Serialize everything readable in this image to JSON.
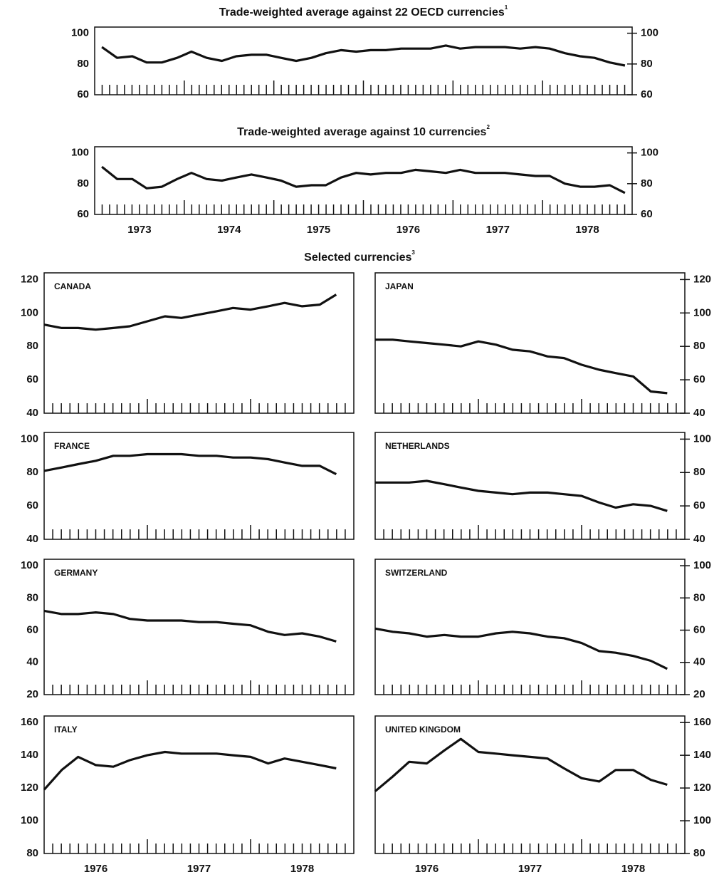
{
  "heading": "Selected currencies",
  "heading_footnote": "3",
  "chart_data": [
    {
      "type": "line",
      "title": "Trade-weighted average against 22 OECD currencies",
      "title_footnote": "1",
      "color": "#111111",
      "x": [
        1973.08,
        1973.25,
        1973.42,
        1973.58,
        1973.75,
        1973.92,
        1974.08,
        1974.25,
        1974.42,
        1974.58,
        1974.75,
        1974.92,
        1975.08,
        1975.25,
        1975.42,
        1975.58,
        1975.75,
        1975.92,
        1976.08,
        1976.25,
        1976.42,
        1976.58,
        1976.75,
        1976.92,
        1977.08,
        1977.25,
        1977.42,
        1977.58,
        1977.75,
        1977.92,
        1978.08,
        1978.25,
        1978.42,
        1978.58,
        1978.75,
        1978.92
      ],
      "values": [
        91,
        84,
        85,
        81,
        81,
        84,
        88,
        84,
        82,
        85,
        86,
        86,
        84,
        82,
        84,
        87,
        89,
        88,
        89,
        89,
        90,
        90,
        90,
        92,
        90,
        91,
        91,
        91,
        90,
        91,
        90,
        87,
        85,
        84,
        81,
        79
      ],
      "xlim": [
        1973,
        1979
      ],
      "ylim": [
        60,
        104
      ],
      "yticks": [
        60,
        80,
        100
      ],
      "minor_ticks_per_year": 12
    },
    {
      "type": "line",
      "title": "Trade-weighted average against 10 currencies",
      "title_footnote": "2",
      "color": "#111111",
      "x": [
        1973.08,
        1973.25,
        1973.42,
        1973.58,
        1973.75,
        1973.92,
        1974.08,
        1974.25,
        1974.42,
        1974.58,
        1974.75,
        1974.92,
        1975.08,
        1975.25,
        1975.42,
        1975.58,
        1975.75,
        1975.92,
        1976.08,
        1976.25,
        1976.42,
        1976.58,
        1976.75,
        1976.92,
        1977.08,
        1977.25,
        1977.42,
        1977.58,
        1977.75,
        1977.92,
        1978.08,
        1978.25,
        1978.42,
        1978.58,
        1978.75,
        1978.92
      ],
      "values": [
        91,
        83,
        83,
        77,
        78,
        83,
        87,
        83,
        82,
        84,
        86,
        84,
        82,
        78,
        79,
        79,
        84,
        87,
        86,
        87,
        87,
        89,
        88,
        87,
        89,
        87,
        87,
        87,
        86,
        85,
        85,
        80,
        78,
        78,
        79,
        74
      ],
      "xlim": [
        1973,
        1979
      ],
      "ylim": [
        60,
        104
      ],
      "yticks": [
        60,
        80,
        100
      ],
      "minor_ticks_per_year": 12,
      "xticks": [
        {
          "value": 1973.5,
          "label": "1973"
        },
        {
          "value": 1974.5,
          "label": "1974"
        },
        {
          "value": 1975.5,
          "label": "1975"
        },
        {
          "value": 1976.5,
          "label": "1976"
        },
        {
          "value": 1977.5,
          "label": "1977"
        },
        {
          "value": 1978.5,
          "label": "1978"
        }
      ]
    },
    {
      "type": "line",
      "title": "CANADA",
      "color": "#111111",
      "x": [
        1976,
        1976.17,
        1976.33,
        1976.5,
        1976.67,
        1976.83,
        1977,
        1977.17,
        1977.33,
        1977.5,
        1977.67,
        1977.83,
        1978,
        1978.17,
        1978.33,
        1978.5,
        1978.67,
        1978.83
      ],
      "values": [
        93,
        91,
        91,
        90,
        91,
        92,
        95,
        98,
        97,
        99,
        101,
        103,
        102,
        104,
        106,
        104,
        105,
        111
      ],
      "xlim": [
        1976,
        1979
      ],
      "ylim": [
        40,
        124
      ],
      "yticks": [
        40,
        60,
        80,
        100,
        120
      ],
      "minor_ticks_per_year": 12
    },
    {
      "type": "line",
      "title": "JAPAN",
      "color": "#111111",
      "x": [
        1976,
        1976.17,
        1976.33,
        1976.5,
        1976.67,
        1976.83,
        1977,
        1977.17,
        1977.33,
        1977.5,
        1977.67,
        1977.83,
        1978,
        1978.17,
        1978.33,
        1978.5,
        1978.67,
        1978.83
      ],
      "values": [
        84,
        84,
        83,
        82,
        81,
        80,
        83,
        81,
        78,
        77,
        74,
        73,
        69,
        66,
        64,
        62,
        53,
        52
      ],
      "xlim": [
        1976,
        1979
      ],
      "ylim": [
        40,
        124
      ],
      "yticks": [
        40,
        60,
        80,
        100,
        120
      ],
      "minor_ticks_per_year": 12
    },
    {
      "type": "line",
      "title": "FRANCE",
      "color": "#111111",
      "x": [
        1976,
        1976.17,
        1976.33,
        1976.5,
        1976.67,
        1976.83,
        1977,
        1977.17,
        1977.33,
        1977.5,
        1977.67,
        1977.83,
        1978,
        1978.17,
        1978.33,
        1978.5,
        1978.67,
        1978.83
      ],
      "values": [
        81,
        83,
        85,
        87,
        90,
        90,
        91,
        91,
        91,
        90,
        90,
        89,
        89,
        88,
        86,
        84,
        84,
        79
      ],
      "xlim": [
        1976,
        1979
      ],
      "ylim": [
        40,
        104
      ],
      "yticks": [
        40,
        60,
        80,
        100
      ],
      "minor_ticks_per_year": 12
    },
    {
      "type": "line",
      "title": "NETHERLANDS",
      "color": "#111111",
      "x": [
        1976,
        1976.17,
        1976.33,
        1976.5,
        1976.67,
        1976.83,
        1977,
        1977.17,
        1977.33,
        1977.5,
        1977.67,
        1977.83,
        1978,
        1978.17,
        1978.33,
        1978.5,
        1978.67,
        1978.83
      ],
      "values": [
        74,
        74,
        74,
        75,
        73,
        71,
        69,
        68,
        67,
        68,
        68,
        67,
        66,
        62,
        59,
        61,
        60,
        57
      ],
      "xlim": [
        1976,
        1979
      ],
      "ylim": [
        40,
        104
      ],
      "yticks": [
        40,
        60,
        80,
        100
      ],
      "minor_ticks_per_year": 12
    },
    {
      "type": "line",
      "title": "GERMANY",
      "color": "#111111",
      "x": [
        1976,
        1976.17,
        1976.33,
        1976.5,
        1976.67,
        1976.83,
        1977,
        1977.17,
        1977.33,
        1977.5,
        1977.67,
        1977.83,
        1978,
        1978.17,
        1978.33,
        1978.5,
        1978.67,
        1978.83
      ],
      "values": [
        72,
        70,
        70,
        71,
        70,
        67,
        66,
        66,
        66,
        65,
        65,
        64,
        63,
        59,
        57,
        58,
        56,
        53
      ],
      "xlim": [
        1976,
        1979
      ],
      "ylim": [
        20,
        104
      ],
      "yticks": [
        20,
        40,
        60,
        80,
        100
      ],
      "minor_ticks_per_year": 12
    },
    {
      "type": "line",
      "title": "SWITZERLAND",
      "color": "#111111",
      "x": [
        1976,
        1976.17,
        1976.33,
        1976.5,
        1976.67,
        1976.83,
        1977,
        1977.17,
        1977.33,
        1977.5,
        1977.67,
        1977.83,
        1978,
        1978.17,
        1978.33,
        1978.5,
        1978.67,
        1978.83
      ],
      "values": [
        61,
        59,
        58,
        56,
        57,
        56,
        56,
        58,
        59,
        58,
        56,
        55,
        52,
        47,
        46,
        44,
        41,
        36
      ],
      "xlim": [
        1976,
        1979
      ],
      "ylim": [
        20,
        104
      ],
      "yticks": [
        20,
        40,
        60,
        80,
        100
      ],
      "minor_ticks_per_year": 12
    },
    {
      "type": "line",
      "title": "ITALY",
      "color": "#111111",
      "x": [
        1976,
        1976.17,
        1976.33,
        1976.5,
        1976.67,
        1976.83,
        1977,
        1977.17,
        1977.33,
        1977.5,
        1977.67,
        1977.83,
        1978,
        1978.17,
        1978.33,
        1978.5,
        1978.67,
        1978.83
      ],
      "values": [
        119,
        131,
        139,
        134,
        133,
        137,
        140,
        142,
        141,
        141,
        141,
        140,
        139,
        135,
        138,
        136,
        134,
        132
      ],
      "xlim": [
        1976,
        1979
      ],
      "ylim": [
        80,
        164
      ],
      "yticks": [
        80,
        100,
        120,
        140,
        160
      ],
      "minor_ticks_per_year": 12,
      "xticks": [
        {
          "value": 1976.5,
          "label": "1976"
        },
        {
          "value": 1977.5,
          "label": "1977"
        },
        {
          "value": 1978.5,
          "label": "1978"
        }
      ]
    },
    {
      "type": "line",
      "title": "UNITED KINGDOM",
      "color": "#111111",
      "x": [
        1976,
        1976.17,
        1976.33,
        1976.5,
        1976.67,
        1976.83,
        1977,
        1977.17,
        1977.33,
        1977.5,
        1977.67,
        1977.83,
        1978,
        1978.17,
        1978.33,
        1978.5,
        1978.67,
        1978.83
      ],
      "values": [
        118,
        127,
        136,
        135,
        143,
        150,
        142,
        141,
        140,
        139,
        138,
        132,
        126,
        124,
        131,
        131,
        125,
        122
      ],
      "xlim": [
        1976,
        1979
      ],
      "ylim": [
        80,
        164
      ],
      "yticks": [
        80,
        100,
        120,
        140,
        160
      ],
      "minor_ticks_per_year": 12,
      "xticks": [
        {
          "value": 1976.5,
          "label": "1976"
        },
        {
          "value": 1977.5,
          "label": "1977"
        },
        {
          "value": 1978.5,
          "label": "1978"
        }
      ]
    }
  ]
}
